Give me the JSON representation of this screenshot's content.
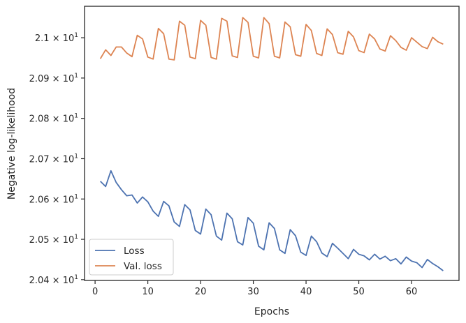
{
  "chart_data": {
    "type": "line",
    "xlabel": "Epochs",
    "ylabel": "Negative log-likelihood",
    "xlim": [
      -2,
      69
    ],
    "ylim": [
      20.398,
      21.078
    ],
    "x_ticks": [
      0,
      10,
      20,
      30,
      40,
      50,
      60
    ],
    "y_ticks": [
      20.4,
      20.5,
      20.6,
      20.7,
      20.8,
      20.9,
      21.0
    ],
    "y_tick_labels": [
      {
        "mantissa": "2.04",
        "exponent": "1"
      },
      {
        "mantissa": "2.05",
        "exponent": "1"
      },
      {
        "mantissa": "2.06",
        "exponent": "1"
      },
      {
        "mantissa": "2.07",
        "exponent": "1"
      },
      {
        "mantissa": "2.08",
        "exponent": "1"
      },
      {
        "mantissa": "2.09",
        "exponent": "1"
      },
      {
        "mantissa": "2.1",
        "exponent": "1"
      }
    ],
    "y_tick_base": "× 10",
    "grid": false,
    "legend_position": "lower-left",
    "x": [
      1,
      2,
      3,
      4,
      5,
      6,
      7,
      8,
      9,
      10,
      11,
      12,
      13,
      14,
      15,
      16,
      17,
      18,
      19,
      20,
      21,
      22,
      23,
      24,
      25,
      26,
      27,
      28,
      29,
      30,
      31,
      32,
      33,
      34,
      35,
      36,
      37,
      38,
      39,
      40,
      41,
      42,
      43,
      44,
      45,
      46,
      47,
      48,
      49,
      50,
      51,
      52,
      53,
      54,
      55,
      56,
      57,
      58,
      59,
      60,
      61,
      62,
      63,
      64,
      65,
      66
    ],
    "series": [
      {
        "name": "Loss",
        "color": "#4c72b0",
        "values": [
          20.644,
          20.631,
          20.67,
          20.641,
          20.623,
          20.608,
          20.61,
          20.59,
          20.605,
          20.593,
          20.57,
          20.557,
          20.594,
          20.583,
          20.543,
          20.532,
          20.586,
          20.573,
          20.522,
          20.513,
          20.575,
          20.561,
          20.508,
          20.498,
          20.565,
          20.551,
          20.494,
          20.486,
          20.554,
          20.54,
          20.483,
          20.474,
          20.541,
          20.527,
          20.474,
          20.465,
          20.524,
          20.509,
          20.468,
          20.46,
          20.508,
          20.494,
          20.466,
          20.457,
          20.49,
          20.478,
          20.465,
          20.452,
          20.475,
          20.463,
          20.459,
          20.449,
          20.463,
          20.451,
          20.458,
          20.447,
          20.452,
          20.439,
          20.456,
          20.446,
          20.442,
          20.43,
          20.45,
          20.44,
          20.432,
          20.422
        ]
      },
      {
        "name": "Val. loss",
        "color": "#dd8452",
        "values": [
          20.948,
          20.97,
          20.956,
          20.977,
          20.977,
          20.962,
          20.953,
          21.006,
          20.997,
          20.952,
          20.947,
          21.023,
          21.01,
          20.947,
          20.945,
          21.041,
          21.031,
          20.952,
          20.948,
          21.043,
          21.031,
          20.951,
          20.947,
          21.048,
          21.041,
          20.955,
          20.951,
          21.05,
          21.038,
          20.954,
          20.95,
          21.05,
          21.035,
          20.954,
          20.95,
          21.039,
          21.027,
          20.958,
          20.954,
          21.033,
          21.018,
          20.961,
          20.956,
          21.022,
          21.008,
          20.963,
          20.959,
          21.016,
          21.002,
          20.968,
          20.963,
          21.009,
          20.997,
          20.972,
          20.967,
          21.005,
          20.993,
          20.976,
          20.969,
          21.0,
          20.989,
          20.978,
          20.973,
          21.001,
          20.99,
          20.984
        ]
      }
    ]
  }
}
